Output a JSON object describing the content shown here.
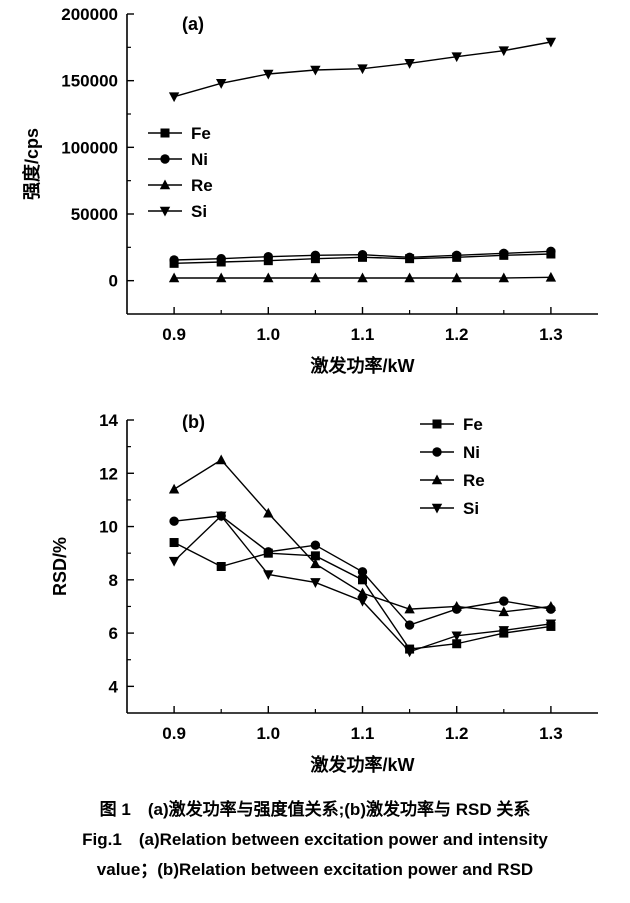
{
  "caption": {
    "line1": "图 1　(a)激发功率与强度值关系;(b)激发功率与 RSD 关系",
    "line2": "Fig.1　(a)Relation between excitation power and intensity",
    "line3": "value；(b)Relation between excitation power and RSD"
  },
  "chart_data": [
    {
      "panel": "(a)",
      "type": "line",
      "title": "",
      "xlabel": "激发功率/kW",
      "ylabel": "强度/cps",
      "x": [
        0.9,
        0.95,
        1.0,
        1.05,
        1.1,
        1.15,
        1.2,
        1.25,
        1.3
      ],
      "series": [
        {
          "name": "Fe",
          "marker": "square",
          "values": [
            13000,
            14000,
            15000,
            16500,
            17500,
            16500,
            17500,
            19000,
            20000
          ]
        },
        {
          "name": "Ni",
          "marker": "circle",
          "values": [
            15500,
            16500,
            18000,
            19000,
            19500,
            17500,
            19000,
            20500,
            22000
          ]
        },
        {
          "name": "Re",
          "marker": "triangle-up",
          "values": [
            2000,
            2000,
            2000,
            2000,
            2000,
            2000,
            2000,
            2000,
            2500
          ]
        },
        {
          "name": "Si",
          "marker": "triangle-down",
          "values": [
            138000,
            148000,
            155000,
            158000,
            159000,
            163000,
            168000,
            172500,
            179000
          ]
        }
      ],
      "xlim": [
        0.85,
        1.35
      ],
      "ylim": [
        -25000,
        200000
      ],
      "xticks": [
        0.9,
        1.0,
        1.1,
        1.2,
        1.3
      ],
      "xtick_labels": [
        "0.9",
        "1.0",
        "1.1",
        "1.2",
        "1.3"
      ],
      "x_minor": [
        0.95,
        1.05,
        1.15,
        1.25
      ],
      "yticks": [
        0,
        50000,
        100000,
        150000,
        200000
      ],
      "ytick_labels": [
        "0",
        "50000",
        "100000",
        "150000",
        "200000"
      ],
      "y_minor": [
        25000,
        75000,
        125000,
        175000
      ],
      "legend_position": "left-middle",
      "grid": false,
      "color": "#000000"
    },
    {
      "panel": "(b)",
      "type": "line",
      "title": "",
      "xlabel": "激发功率/kW",
      "ylabel": "RSD/%",
      "x": [
        0.9,
        0.95,
        1.0,
        1.05,
        1.1,
        1.15,
        1.2,
        1.25,
        1.3
      ],
      "series": [
        {
          "name": "Fe",
          "marker": "square",
          "values": [
            9.4,
            8.5,
            9.0,
            8.9,
            8.0,
            5.4,
            5.6,
            6.0,
            6.25
          ]
        },
        {
          "name": "Ni",
          "marker": "circle",
          "values": [
            10.2,
            10.4,
            9.05,
            9.3,
            8.3,
            6.3,
            6.9,
            7.2,
            6.9
          ]
        },
        {
          "name": "Re",
          "marker": "triangle-up",
          "values": [
            11.4,
            12.5,
            10.5,
            8.6,
            7.5,
            6.9,
            7.0,
            6.8,
            7.0
          ]
        },
        {
          "name": "Si",
          "marker": "triangle-down",
          "values": [
            8.7,
            10.4,
            8.2,
            7.9,
            7.2,
            5.3,
            5.9,
            6.1,
            6.35
          ]
        }
      ],
      "xlim": [
        0.85,
        1.35
      ],
      "ylim": [
        3,
        14
      ],
      "xticks": [
        0.9,
        1.0,
        1.1,
        1.2,
        1.3
      ],
      "xtick_labels": [
        "0.9",
        "1.0",
        "1.1",
        "1.2",
        "1.3"
      ],
      "x_minor": [
        0.95,
        1.05,
        1.15,
        1.25
      ],
      "yticks": [
        4,
        6,
        8,
        10,
        12,
        14
      ],
      "ytick_labels": [
        "4",
        "6",
        "8",
        "10",
        "12",
        "14"
      ],
      "y_minor": [
        5,
        7,
        9,
        11,
        13
      ],
      "legend_position": "top-right",
      "grid": false,
      "color": "#000000"
    }
  ]
}
